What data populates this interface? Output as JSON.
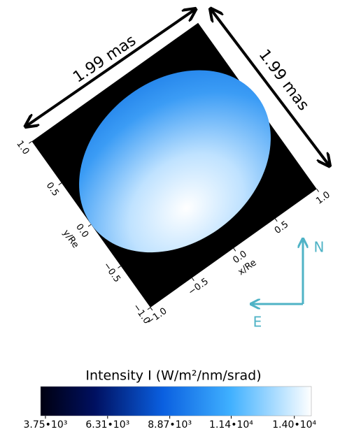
{
  "chart_data": {
    "type": "image",
    "x_label": "x/Re",
    "y_label": "y/Re",
    "xlim": [
      -1,
      1
    ],
    "ylim": [
      -1,
      1
    ],
    "xticks": [
      {
        "value": -1,
        "label": "−1.0"
      },
      {
        "value": -0.5,
        "label": "−0.5"
      },
      {
        "value": 0,
        "label": "0.0"
      },
      {
        "value": 0.5,
        "label": "0.5"
      },
      {
        "value": 1,
        "label": "1.0"
      }
    ],
    "yticks": [
      {
        "value": -1,
        "label": "−1.0"
      },
      {
        "value": -0.5,
        "label": "−0.5"
      },
      {
        "value": 0,
        "label": "0.0"
      },
      {
        "value": 0.5,
        "label": "0.5"
      },
      {
        "value": 1,
        "label": "1.0"
      }
    ],
    "annotations": [
      "1.99 mas",
      "1.99 mas",
      "N",
      "E"
    ],
    "colorbar": {
      "label": "Intensity I (W/m²/nm/srad)",
      "clim": [
        3550,
        14700
      ],
      "ticks": [
        {
          "value": 3750,
          "label": "3.75•10³"
        },
        {
          "value": 6310,
          "label": "6.31•10³"
        },
        {
          "value": 8870,
          "label": "8.87•10³"
        },
        {
          "value": 11400,
          "label": "1.14•10⁴"
        },
        {
          "value": 14000,
          "label": "1.40•10⁴"
        }
      ]
    }
  }
}
